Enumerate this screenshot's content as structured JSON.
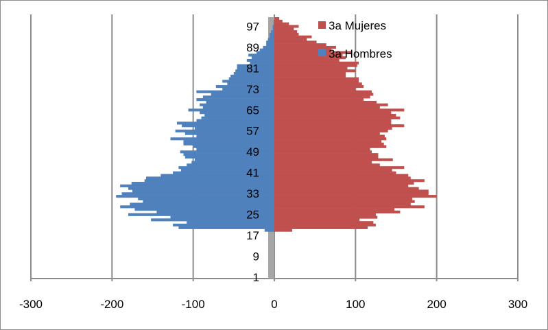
{
  "chart_data": {
    "type": "bar",
    "orientation": "horizontal",
    "title": "",
    "xlabel": "",
    "ylabel": "",
    "xlim": [
      -300,
      300
    ],
    "ylim": [
      1,
      100
    ],
    "x_ticks": [
      "-300",
      "-200",
      "-100",
      "0",
      "100",
      "200",
      "300"
    ],
    "y_ticks": [
      "1",
      "9",
      "17",
      "25",
      "33",
      "41",
      "49",
      "57",
      "65",
      "73",
      "81",
      "89",
      "97"
    ],
    "y_tick_values": [
      1,
      9,
      17,
      25,
      33,
      41,
      49,
      57,
      65,
      73,
      81,
      89,
      97
    ],
    "grid": "vertical major gridlines",
    "legend_position": "top-right",
    "categories": [
      1,
      2,
      3,
      4,
      5,
      6,
      7,
      8,
      9,
      10,
      11,
      12,
      13,
      14,
      15,
      16,
      17,
      18,
      19,
      20,
      21,
      22,
      23,
      24,
      25,
      26,
      27,
      28,
      29,
      30,
      31,
      32,
      33,
      34,
      35,
      36,
      37,
      38,
      39,
      40,
      41,
      42,
      43,
      44,
      45,
      46,
      47,
      48,
      49,
      50,
      51,
      52,
      53,
      54,
      55,
      56,
      57,
      58,
      59,
      60,
      61,
      62,
      63,
      64,
      65,
      66,
      67,
      68,
      69,
      70,
      71,
      72,
      73,
      74,
      75,
      76,
      77,
      78,
      79,
      80,
      81,
      82,
      83,
      84,
      85,
      86,
      87,
      88,
      89,
      90,
      91,
      92,
      93,
      94,
      95,
      96,
      97,
      98,
      99,
      100
    ],
    "series": [
      {
        "name": "3a Mujeres",
        "color": "#c0504d",
        "values": [
          0,
          0,
          0,
          0,
          0,
          0,
          0,
          0,
          0,
          0,
          0,
          0,
          0,
          0,
          0,
          0,
          0,
          0,
          22,
          115,
          125,
          122,
          105,
          127,
          125,
          155,
          148,
          185,
          168,
          173,
          170,
          200,
          190,
          190,
          178,
          165,
          172,
          185,
          168,
          165,
          150,
          145,
          160,
          130,
          120,
          146,
          128,
          128,
          120,
          118,
          138,
          135,
          132,
          138,
          136,
          130,
          140,
          145,
          160,
          144,
          144,
          155,
          150,
          144,
          160,
          130,
          140,
          126,
          110,
          118,
          122,
          120,
          100,
          110,
          108,
          104,
          104,
          88,
          88,
          100,
          90,
          102,
          104,
          80,
          88,
          84,
          96,
          70,
          76,
          64,
          52,
          40,
          46,
          30,
          28,
          24,
          30,
          18,
          10,
          6
        ]
      },
      {
        "name": "3a Hombres",
        "color": "#4f81bd",
        "values": [
          0,
          0,
          0,
          0,
          0,
          0,
          0,
          0,
          0,
          0,
          0,
          0,
          0,
          0,
          0,
          0,
          0,
          0,
          -12,
          -118,
          -125,
          -108,
          -152,
          -128,
          -180,
          -145,
          -172,
          -190,
          -178,
          -162,
          -168,
          -195,
          -188,
          -175,
          -180,
          -190,
          -176,
          -160,
          -158,
          -140,
          -125,
          -115,
          -118,
          -108,
          -102,
          -98,
          -110,
          -112,
          -116,
          -96,
          -100,
          -112,
          -112,
          -128,
          -96,
          -110,
          -122,
          -98,
          -114,
          -120,
          -96,
          -90,
          -86,
          -92,
          -106,
          -88,
          -92,
          -84,
          -96,
          -88,
          -78,
          -96,
          -64,
          -72,
          -58,
          -64,
          -56,
          -54,
          -50,
          -48,
          -46,
          -46,
          -30,
          -34,
          -28,
          -32,
          -22,
          -18,
          -14,
          -10,
          -10,
          -8,
          -6,
          -6,
          -4,
          -2,
          -2,
          -1,
          -1,
          0
        ]
      }
    ]
  },
  "legend": {
    "mujeres_label": "3a Mujeres",
    "hombres_label": "3a Hombres"
  }
}
